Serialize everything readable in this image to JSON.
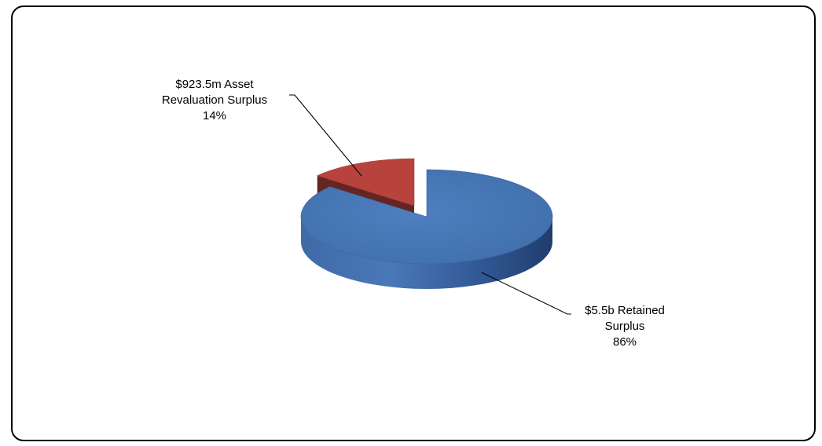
{
  "chart_data": {
    "type": "pie",
    "style": "3d-exploded",
    "title": "",
    "slices": [
      {
        "category": "Retained Surplus",
        "value_text": "$5.5b",
        "percent": 86,
        "label_lines": [
          "$5.5b Retained",
          "Surplus",
          "86%"
        ],
        "color": "#4472B0"
      },
      {
        "category": "Asset Revaluation Surplus",
        "value_text": "$923.5m",
        "percent": 14,
        "label_lines": [
          "$923.5m Asset",
          "Revaluation Surplus",
          "14%"
        ],
        "color": "#B8433D"
      }
    ],
    "legend": "none"
  }
}
